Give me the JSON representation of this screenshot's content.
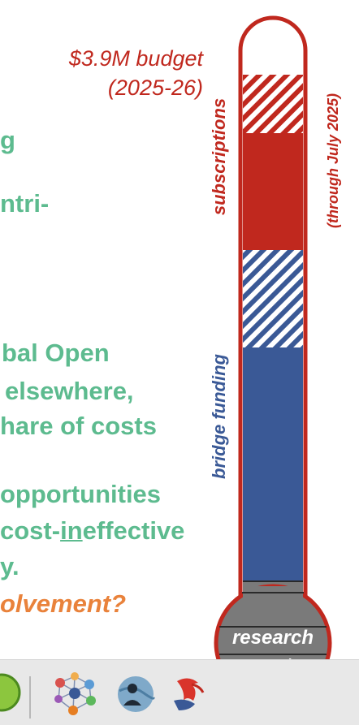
{
  "slide": {
    "budget_line1": "$3.9M budget",
    "budget_line2": "(2025-26)",
    "green_frag1": "g",
    "green_frag2": "ntri-",
    "green_frag3": "bal Open",
    "green_frag4": "elsewhere,",
    "green_frag5": "hare of costs",
    "green_frag6": "opportunities",
    "green_frag7_pre": "cost-",
    "green_frag7_in": "in",
    "green_frag7_post": "effective",
    "green_frag8": "y.",
    "orange_frag": "olvement?"
  },
  "thermometer": {
    "label_subscriptions": "subscriptions",
    "label_through": "(through July 2025)",
    "label_bridge": "bridge funding",
    "bulb_line1": "research",
    "bulb_line2": "grants",
    "colors": {
      "red": "#c0281e",
      "blue": "#3a5996",
      "gray": "#7a7a7a",
      "green_text": "#5dbb8f",
      "orange_text": "#e9823b"
    }
  },
  "taskbar": {
    "icons": [
      "green-circle-app-icon",
      "network-graph-app-icon",
      "profile-globe-app-icon",
      "red-bird-app-icon"
    ]
  }
}
